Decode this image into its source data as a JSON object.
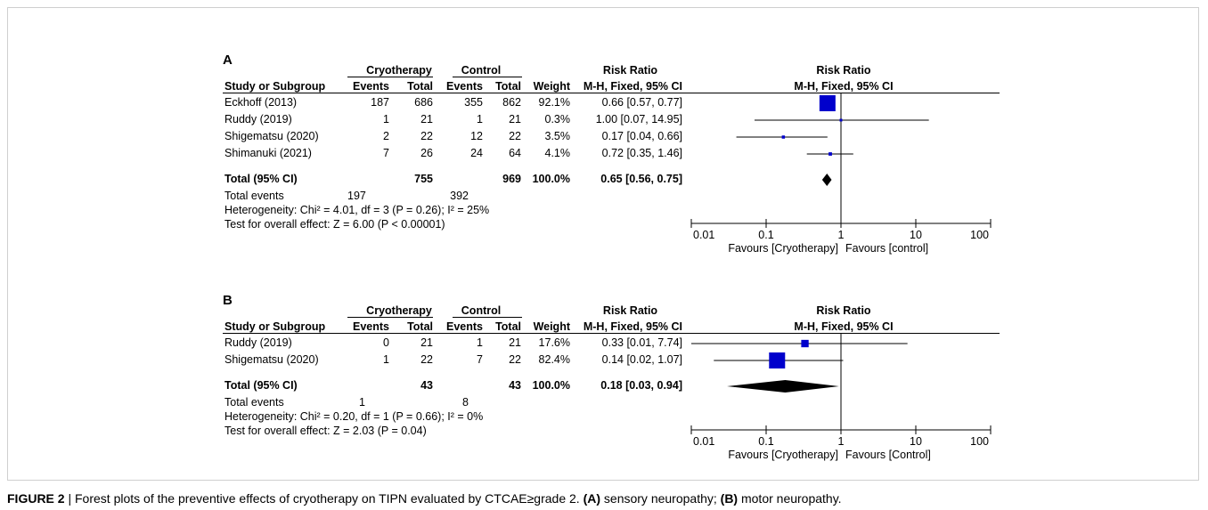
{
  "caption": {
    "label": "FIGURE 2",
    "separator": " | ",
    "pre": "Forest plots of the preventive effects of cryotherapy on TIPN evaluated by CTCAE≥grade 2. ",
    "a_tag": "(A)",
    "a_text": " sensory neuropathy; ",
    "b_tag": "(B)",
    "b_text": " motor neuropathy."
  },
  "headers": {
    "experimental": "Cryotherapy",
    "control": "Control",
    "risk_ratio": "Risk Ratio",
    "study": "Study or Subgroup",
    "events": "Events",
    "total": "Total",
    "weight": "Weight",
    "method": "M-H, Fixed, 95% CI"
  },
  "chart_data": [
    {
      "type": "forest",
      "panel": "A",
      "scale": "log",
      "xlim": [
        0.01,
        100
      ],
      "ticks": [
        "0.01",
        "0.1",
        "1",
        "10",
        "100"
      ],
      "favours_left": "Favours [Cryotherapy]",
      "favours_right": "Favours [control]",
      "studies": [
        {
          "name": "Eckhoff (2013)",
          "e_events": "187",
          "e_total": "686",
          "c_events": "355",
          "c_total": "862",
          "weight": "92.1%",
          "ci_text": "0.66 [0.57, 0.77]",
          "rr": 0.66,
          "lo": 0.57,
          "hi": 0.77,
          "w": 92.1
        },
        {
          "name": "Ruddy (2019)",
          "e_events": "1",
          "e_total": "21",
          "c_events": "1",
          "c_total": "21",
          "weight": "0.3%",
          "ci_text": "1.00 [0.07, 14.95]",
          "rr": 1.0,
          "lo": 0.07,
          "hi": 14.95,
          "w": 0.3
        },
        {
          "name": "Shigematsu (2020)",
          "e_events": "2",
          "e_total": "22",
          "c_events": "12",
          "c_total": "22",
          "weight": "3.5%",
          "ci_text": "0.17 [0.04, 0.66]",
          "rr": 0.17,
          "lo": 0.04,
          "hi": 0.66,
          "w": 3.5
        },
        {
          "name": "Shimanuki (2021)",
          "e_events": "7",
          "e_total": "26",
          "c_events": "24",
          "c_total": "64",
          "weight": "4.1%",
          "ci_text": "0.72 [0.35, 1.46]",
          "rr": 0.72,
          "lo": 0.35,
          "hi": 1.46,
          "w": 4.1
        }
      ],
      "total": {
        "label": "Total (95% CI)",
        "e_total": "755",
        "c_total": "969",
        "weight": "100.0%",
        "ci_text": "0.65 [0.56, 0.75]",
        "rr": 0.65,
        "lo": 0.56,
        "hi": 0.75
      },
      "total_events": {
        "label": "Total events",
        "e": "197",
        "c": "392"
      },
      "heterogeneity": "Heterogeneity: Chi² = 4.01, df = 3 (P = 0.26); I² = 25%",
      "overall_effect": "Test for overall effect: Z = 6.00 (P < 0.00001)"
    },
    {
      "type": "forest",
      "panel": "B",
      "scale": "log",
      "xlim": [
        0.01,
        100
      ],
      "ticks": [
        "0.01",
        "0.1",
        "1",
        "10",
        "100"
      ],
      "favours_left": "Favours [Cryotherapy]",
      "favours_right": "Favours [Control]",
      "studies": [
        {
          "name": "Ruddy (2019)",
          "e_events": "0",
          "e_total": "21",
          "c_events": "1",
          "c_total": "21",
          "weight": "17.6%",
          "ci_text": "0.33 [0.01, 7.74]",
          "rr": 0.33,
          "lo": 0.01,
          "hi": 7.74,
          "w": 17.6
        },
        {
          "name": "Shigematsu (2020)",
          "e_events": "1",
          "e_total": "22",
          "c_events": "7",
          "c_total": "22",
          "weight": "82.4%",
          "ci_text": "0.14 [0.02, 1.07]",
          "rr": 0.14,
          "lo": 0.02,
          "hi": 1.07,
          "w": 82.4
        }
      ],
      "total": {
        "label": "Total (95% CI)",
        "e_total": "43",
        "c_total": "43",
        "weight": "100.0%",
        "ci_text": "0.18 [0.03, 0.94]",
        "rr": 0.18,
        "lo": 0.03,
        "hi": 0.94
      },
      "total_events": {
        "label": "Total events",
        "e": "1",
        "c": "8"
      },
      "heterogeneity": "Heterogeneity: Chi² = 0.20, df = 1 (P = 0.66); I² = 0%",
      "overall_effect": "Test for overall effect: Z = 2.03 (P = 0.04)"
    }
  ],
  "colors": {
    "marker": "#0000cc",
    "diamond": "#000000"
  }
}
